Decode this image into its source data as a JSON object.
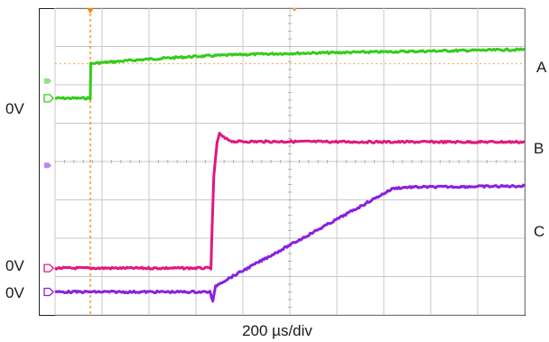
{
  "chart_data": {
    "type": "line",
    "title": "",
    "xlabel": "200 µs/div",
    "ylabel": "",
    "grid": true,
    "x_divisions": 10,
    "y_divisions": 8,
    "xlim": [
      0,
      10
    ],
    "ylim": [
      0,
      8
    ],
    "series": [
      {
        "name": "A",
        "color": "#33cc1a",
        "ground_label": "0V",
        "ground_div": 5.65,
        "x": [
          0,
          0.75,
          0.76,
          1.0,
          2.0,
          3.0,
          4.0,
          5.0,
          6.0,
          7.0,
          8.0,
          9.0,
          10.0
        ],
        "y": [
          5.65,
          5.65,
          6.55,
          6.58,
          6.67,
          6.74,
          6.79,
          6.82,
          6.84,
          6.86,
          6.88,
          6.9,
          6.92
        ]
      },
      {
        "name": "B",
        "color": "#e0197d",
        "ground_label": "0V",
        "ground_div": 1.22,
        "x": [
          0,
          3.32,
          3.34,
          3.38,
          3.45,
          3.5,
          3.62,
          3.8,
          4.0,
          5.0,
          7.0,
          10.0
        ],
        "y": [
          1.22,
          1.22,
          2.1,
          3.6,
          4.5,
          4.72,
          4.6,
          4.52,
          4.52,
          4.52,
          4.51,
          4.51
        ]
      },
      {
        "name": "C",
        "color": "#8a1fe0",
        "ground_label": "0V",
        "ground_div": 0.6,
        "x": [
          0,
          3.3,
          3.36,
          3.42,
          3.5,
          5.0,
          7.2,
          7.5,
          10.0
        ],
        "y": [
          0.6,
          0.6,
          0.35,
          0.75,
          0.82,
          1.82,
          3.3,
          3.33,
          3.36
        ]
      }
    ],
    "cursors": [
      {
        "type": "vertical",
        "x": 0.75,
        "color": "#f08a00"
      },
      {
        "type": "horizontal",
        "y": 6.55,
        "color": "#f08a00"
      }
    ]
  }
}
